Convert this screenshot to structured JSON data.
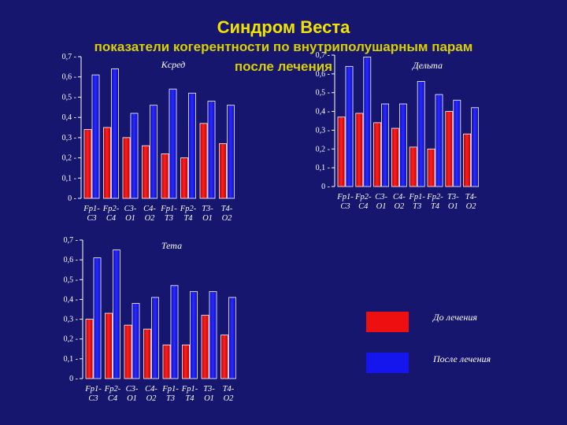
{
  "title": "Синдром Веста",
  "subtitle_line1": "показатели когерентности по внутриполушарным парам",
  "subtitle_line2": "после лечения",
  "colors": {
    "before": "#ee1010",
    "after": "#1515ee",
    "axis": "#ffffff",
    "background": "#16166e",
    "title": "#f2e200"
  },
  "legend": {
    "before": "До лечения",
    "after": "После лечения"
  },
  "chart_data": [
    {
      "type": "bar",
      "title": "Кcред",
      "categories": [
        "Fp1-\nC3",
        "Fp2-\nC4",
        "C3-\nO1",
        "C4-\nO2",
        "Fp1-\nT3",
        "Fp2-\nT4",
        "T3-\nO1",
        "T4-\nO2"
      ],
      "series": [
        {
          "name": "До лечения",
          "values": [
            0.34,
            0.35,
            0.3,
            0.26,
            0.22,
            0.2,
            0.37,
            0.27
          ]
        },
        {
          "name": "После лечения",
          "values": [
            0.61,
            0.64,
            0.42,
            0.46,
            0.54,
            0.52,
            0.48,
            0.46
          ]
        }
      ],
      "ylim": [
        0,
        0.7
      ],
      "yticks": [
        "0",
        "0,1",
        "0,2",
        "0,3",
        "0,4",
        "0,5",
        "0,6",
        "0,7"
      ]
    },
    {
      "type": "bar",
      "title": "Дельта",
      "categories": [
        "Fp1-\nC3",
        "Fp2-\nC4",
        "C3-\nO1",
        "C4-\nO2",
        "Fp1-\nT3",
        "Fp2-\nT4",
        "T3-\nO1",
        "T4-\nO2"
      ],
      "series": [
        {
          "name": "До лечения",
          "values": [
            0.37,
            0.39,
            0.34,
            0.31,
            0.21,
            0.2,
            0.4,
            0.28
          ]
        },
        {
          "name": "После лечения",
          "values": [
            0.64,
            0.69,
            0.44,
            0.44,
            0.56,
            0.49,
            0.46,
            0.42
          ]
        }
      ],
      "ylim": [
        0,
        0.7
      ],
      "yticks": [
        "0",
        "0,1",
        "0,2",
        "0,3",
        "0,4",
        "0,5",
        "0,6",
        "0,7"
      ]
    },
    {
      "type": "bar",
      "title": "Тета",
      "categories": [
        "Fp1-\nC3",
        "Fp2-\nC4",
        "C3-\nO1",
        "C4-\nO2",
        "Fp1-\nT3",
        "Fp1-\nT4",
        "T3-\nO1",
        "T4-\nO2"
      ],
      "series": [
        {
          "name": "До лечения",
          "values": [
            0.3,
            0.33,
            0.27,
            0.25,
            0.17,
            0.17,
            0.32,
            0.22
          ]
        },
        {
          "name": "После лечения",
          "values": [
            0.61,
            0.65,
            0.38,
            0.41,
            0.47,
            0.44,
            0.44,
            0.41
          ]
        }
      ],
      "ylim": [
        0,
        0.7
      ],
      "yticks": [
        "0",
        "0,1",
        "0,2",
        "0,3",
        "0,4",
        "0,5",
        "0,6",
        "0,7"
      ]
    }
  ]
}
